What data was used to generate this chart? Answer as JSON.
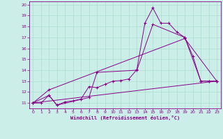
{
  "xlabel": "Windchill (Refroidissement éolien,°C)",
  "bg_color": "#cceee8",
  "line_color": "#880088",
  "grid_color": "#aaddcc",
  "xlim": [
    -0.5,
    23.5
  ],
  "ylim": [
    10.5,
    20.3
  ],
  "yticks": [
    11,
    12,
    13,
    14,
    15,
    16,
    17,
    18,
    19,
    20
  ],
  "xticks": [
    0,
    1,
    2,
    3,
    4,
    5,
    6,
    7,
    8,
    9,
    10,
    11,
    12,
    13,
    14,
    15,
    16,
    17,
    18,
    19,
    20,
    21,
    22,
    23
  ],
  "series1_x": [
    0,
    1,
    2,
    3,
    4,
    5,
    6,
    7,
    8,
    9,
    10,
    11,
    12,
    13,
    14,
    15,
    16,
    17,
    18,
    19,
    20,
    21,
    22,
    23
  ],
  "series1_y": [
    11,
    11,
    11.7,
    10.8,
    11.1,
    11.2,
    11.35,
    12.5,
    12.4,
    12.7,
    13.0,
    13.05,
    13.2,
    14.05,
    18.3,
    19.7,
    18.3,
    18.3,
    17.5,
    17.0,
    15.3,
    13.0,
    13.0,
    13.0
  ],
  "series2_x": [
    0,
    2,
    3,
    7,
    8,
    13,
    15,
    19,
    21,
    22,
    23
  ],
  "series2_y": [
    11,
    11.7,
    10.8,
    11.5,
    13.8,
    14.0,
    18.2,
    17.0,
    13.0,
    13.0,
    13.0
  ],
  "series3_x": [
    0,
    2,
    19,
    23
  ],
  "series3_y": [
    11,
    12.2,
    16.9,
    13.0
  ],
  "series4_x": [
    0,
    23
  ],
  "series4_y": [
    11,
    13.0
  ]
}
